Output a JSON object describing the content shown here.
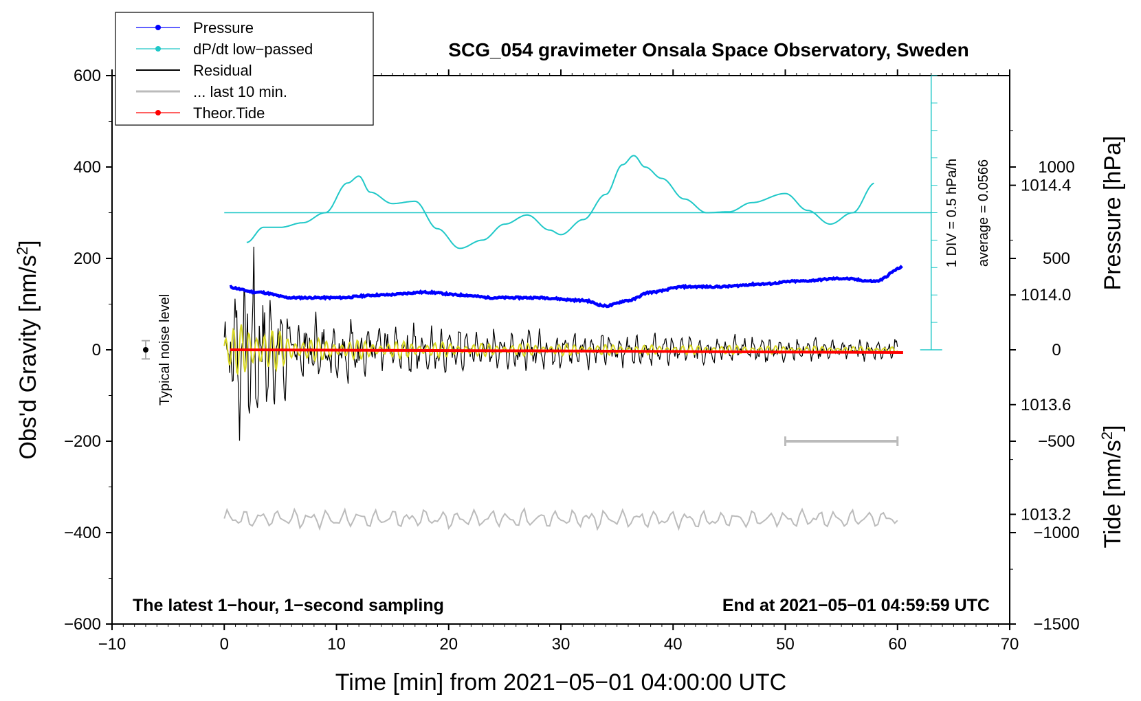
{
  "chart_data": {
    "type": "line",
    "title": "SCG_054 gravimeter Onsala Space Observatory, Sweden",
    "xlabel": "Time [min] from 2021−05−01 04:00:00 UTC",
    "ylabel_main": "Obs'd Gravity [nm/s",
    "ylabel_main_sup": "2",
    "ylabel_main_close": "]",
    "ylabel_pressure": "Pressure [hPa]",
    "ylabel_tide": "Tide [nm/s",
    "ylabel_tide_sup": "2",
    "ylabel_tide_close": "]",
    "xlim": [
      -10,
      70
    ],
    "ylim": [
      -600,
      600
    ],
    "x_ticks": [
      "−10",
      "0",
      "10",
      "20",
      "30",
      "40",
      "50",
      "60",
      "70"
    ],
    "x_tick_values": [
      -10,
      0,
      10,
      20,
      30,
      40,
      50,
      60,
      70
    ],
    "y_ticks": [
      "−600",
      "−400",
      "−200",
      "0",
      "200",
      "400",
      "600"
    ],
    "y_tick_values": [
      -600,
      -400,
      -200,
      0,
      200,
      400,
      600
    ],
    "pressure_ticks": [
      "1013.2",
      "1013.6",
      "1014.0",
      "1014.4"
    ],
    "pressure_tick_values": [
      1013.2,
      1013.6,
      1014.0,
      1014.4
    ],
    "pressure_range": [
      1012.8,
      1014.8
    ],
    "tide_ticks": [
      "1000",
      "500",
      "0",
      "−500",
      "−1000",
      "−1500"
    ],
    "tide_tick_values": [
      1000,
      500,
      0,
      -500,
      -1000,
      -1500
    ],
    "tide_range": [
      -1500,
      1500
    ],
    "legend": [
      {
        "name": "Pressure",
        "color": "#0000ff",
        "marker": true
      },
      {
        "name": "dP/dt low−passed",
        "color": "#20c8c8",
        "marker": true
      },
      {
        "name": "Residual",
        "color": "#000000",
        "marker": false
      },
      {
        "name": "... last 10 min.",
        "color": "#bbbbbb",
        "marker": false
      },
      {
        "name": "Theor.Tide",
        "color": "#ff0000",
        "marker": true
      }
    ],
    "annotations": {
      "bottom_left": "The latest 1−hour, 1−second sampling",
      "bottom_right": "End at 2021−05−01 04:59:59 UTC",
      "noise_label": "Typical noise level",
      "dpdt_scale": "1 DIV = 0.5 hPa/h",
      "dpdt_average": "average = 0.0566"
    },
    "series": [
      {
        "name": "Pressure",
        "color": "#0000ff",
        "x": [
          0,
          3,
          6,
          10,
          14,
          18,
          21,
          24,
          28,
          32,
          34,
          36,
          38,
          41,
          44,
          48,
          51,
          55,
          58,
          60.5
        ],
        "values": [
          1014.03,
          1014.01,
          1013.99,
          1013.99,
          1014.0,
          1014.01,
          1014.0,
          1013.99,
          1013.99,
          1013.98,
          1013.96,
          1013.98,
          1014.01,
          1014.03,
          1014.03,
          1014.04,
          1014.05,
          1014.06,
          1014.05,
          1014.1
        ]
      },
      {
        "name": "dP/dt low-passed",
        "color": "#20c8c8",
        "x": [
          2,
          3.5,
          5,
          7,
          9,
          11,
          12,
          13,
          15,
          17,
          19,
          21,
          23,
          25,
          27,
          29,
          30,
          32,
          34,
          35.5,
          36.5,
          37.5,
          39,
          41,
          43,
          45,
          47,
          50,
          52,
          54,
          56,
          58
        ],
        "values": [
          235,
          268,
          268,
          278,
          300,
          365,
          380,
          345,
          320,
          325,
          265,
          222,
          240,
          275,
          295,
          262,
          252,
          285,
          340,
          405,
          425,
          400,
          375,
          330,
          300,
          302,
          322,
          342,
          305,
          275,
          300,
          365
        ]
      },
      {
        "name": "Theor.Tide",
        "color": "#ff0000",
        "x": [
          0.5,
          10,
          20,
          30,
          40,
          50,
          60.5
        ],
        "values": [
          0,
          -2,
          -4,
          -6,
          -9,
          -12,
          -15
        ]
      }
    ],
    "dpdt_reference": 300,
    "residual_envelope": {
      "x": [
        0,
        2,
        4,
        8,
        15,
        25,
        40,
        60
      ],
      "values": [
        90,
        200,
        130,
        70,
        55,
        40,
        30,
        20
      ]
    },
    "noise_bar": {
      "x": -7,
      "y": 0,
      "error": 20
    },
    "last10_bar": {
      "x0": 50,
      "x1": 60,
      "y": -200
    }
  }
}
